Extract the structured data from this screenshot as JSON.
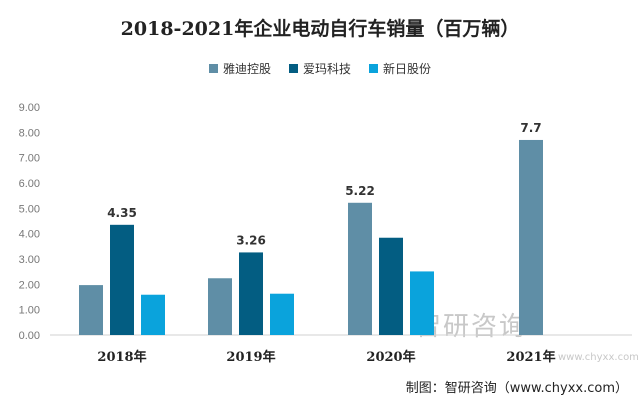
{
  "chart_data": {
    "type": "bar",
    "title": "2018-2021年企业电动自行车销量（百万辆）",
    "categories": [
      "2018年",
      "2019年",
      "2020年",
      "2021年"
    ],
    "series": [
      {
        "name": "雅迪控股",
        "color": "#5f8ea6",
        "values": [
          1.97,
          2.24,
          5.22,
          7.7
        ],
        "labels": [
          null,
          null,
          "5.22",
          "7.7"
        ]
      },
      {
        "name": "爱玛科技",
        "color": "#035d82",
        "values": [
          4.35,
          3.26,
          3.84,
          null
        ],
        "labels": [
          "4.35",
          "3.26",
          null,
          null
        ]
      },
      {
        "name": "新日股份",
        "color": "#0aa3dc",
        "values": [
          1.59,
          1.63,
          2.51,
          null
        ],
        "labels": [
          null,
          null,
          null,
          null
        ]
      }
    ],
    "ylim": [
      0,
      9
    ],
    "yticks": [
      "0.00",
      "1.00",
      "2.00",
      "3.00",
      "4.00",
      "5.00",
      "6.00",
      "7.00",
      "8.00",
      "9.00"
    ],
    "grid": false,
    "legend": "top"
  },
  "watermark": "智研咨询",
  "watermark_url": "www.chyxx.com",
  "footer": "制图：智研咨询（www.chyxx.com）"
}
